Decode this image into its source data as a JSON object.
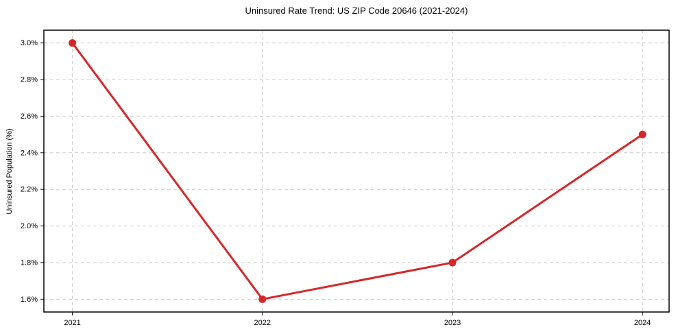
{
  "figure": {
    "title": "Uninsured Rate Trend: US ZIP Code 20646 (2021-2024)",
    "ylabel": "Uninsured Population (%)"
  },
  "chart_data": {
    "type": "line",
    "title": "Uninsured Rate Trend: US ZIP Code 20646 (2021-2024)",
    "xlabel": "",
    "ylabel": "Uninsured Population (%)",
    "categories": [
      "2021",
      "2022",
      "2023",
      "2024"
    ],
    "x": [
      2021,
      2022,
      2023,
      2024
    ],
    "series": [
      {
        "name": "Uninsured Rate",
        "values": [
          3.0,
          1.6,
          1.8,
          2.5
        ]
      }
    ],
    "xlim": [
      2020.85,
      2024.14
    ],
    "ylim": [
      1.53,
      3.07
    ],
    "xticks": [
      2021,
      2022,
      2023,
      2024
    ],
    "xtick_labels": [
      "2021",
      "2022",
      "2023",
      "2024"
    ],
    "yticks": [
      1.6,
      1.8,
      2.0,
      2.2,
      2.4,
      2.6,
      2.8,
      3.0
    ],
    "ytick_labels": [
      "1.6%",
      "1.8%",
      "2.0%",
      "2.2%",
      "2.4%",
      "2.6%",
      "2.8%",
      "3.0%"
    ],
    "grid": true,
    "legend": false,
    "line_color": "#d62728",
    "marker": "circle",
    "grid_color": "#cccccc",
    "spine_color": "#000000"
  }
}
